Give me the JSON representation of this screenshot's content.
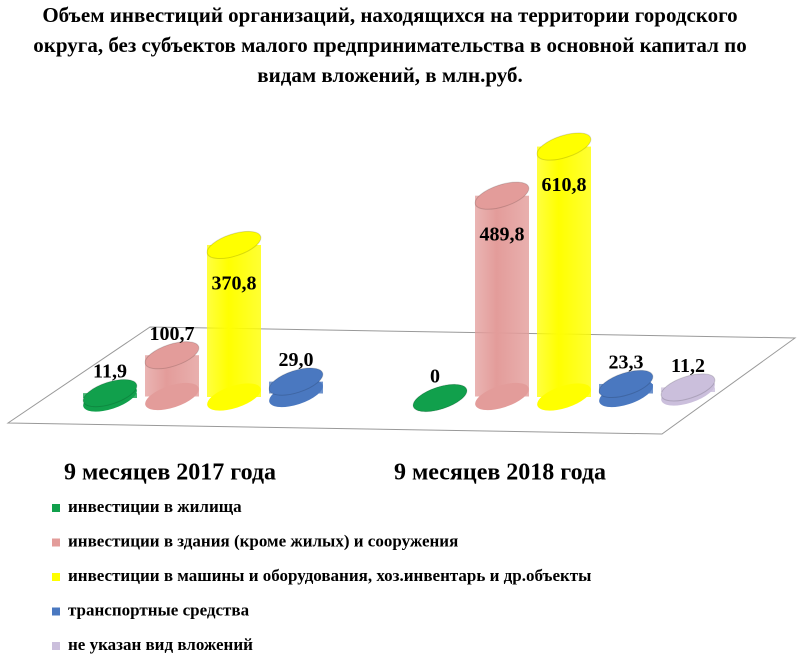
{
  "chart_data": {
    "type": "bar3d",
    "title": "Объем инвестиций организаций, находящихся на территории городского округа, без субъектов малого предпринимательства  в основной капитал  по видам вложений,  в млн.руб.",
    "categories": [
      "9 месяцев 2017 года",
      "9 месяцев 2018 года"
    ],
    "series": [
      {
        "name": "инвестиции в жилища",
        "color": "#11a04c",
        "values": [
          11.9,
          0
        ],
        "value_labels": [
          "11,9",
          "0"
        ]
      },
      {
        "name": "инвестиции в здания (кроме жилых) и сооружения",
        "color": "#e39c9a",
        "values": [
          100.7,
          489.8
        ],
        "value_labels": [
          "100,7",
          "489,8"
        ]
      },
      {
        "name": "инвестиции в машины и оборудования, хоз.инвентарь и др.объекты",
        "color": "#ffff00",
        "values": [
          370.8,
          610.8
        ],
        "value_labels": [
          "370,8",
          "610,8"
        ]
      },
      {
        "name": "транспортные средства",
        "color": "#4a78c0",
        "values": [
          29.0,
          23.3
        ],
        "value_labels": [
          "29,0",
          "23,3"
        ]
      },
      {
        "name": "не указан вид вложений",
        "color": "#cbbfdc",
        "values": [
          null,
          11.2
        ],
        "value_labels": [
          null,
          "11,2"
        ]
      }
    ]
  }
}
